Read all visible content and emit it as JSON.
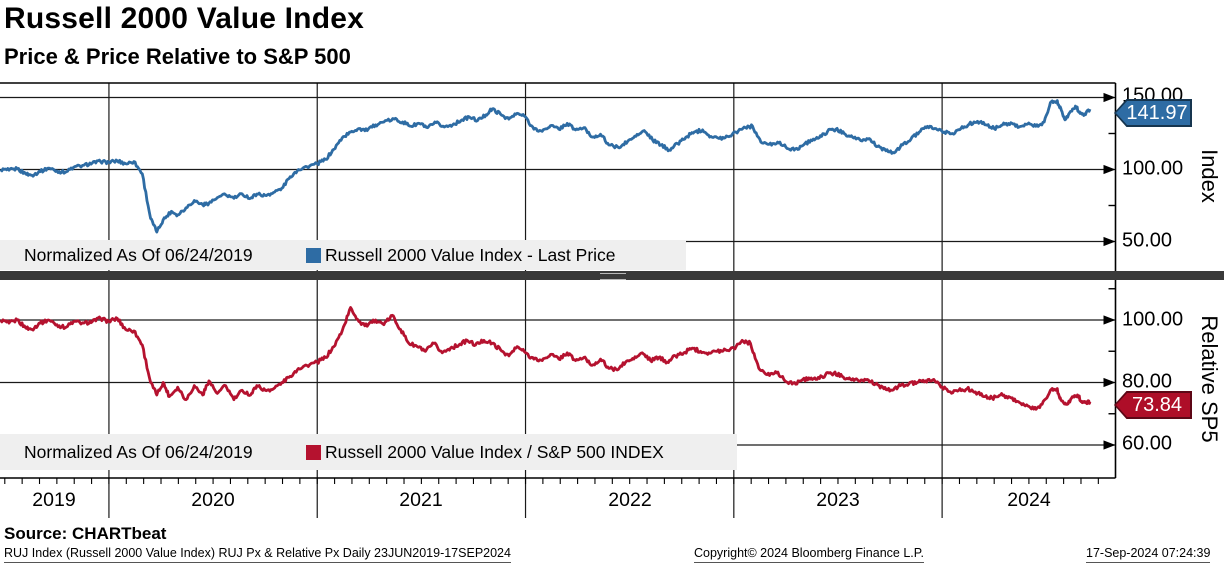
{
  "header": {
    "title": "Russell 2000 Value Index",
    "subtitle": "Price & Price Relative to S&P 500"
  },
  "colors": {
    "price_line": "#2e6ca4",
    "price_badge": "#2e6ca4",
    "badge_border": "#16354f",
    "relative_line": "#b5122f",
    "relative_badge": "#ae0e28",
    "relative_badge_border": "#5d0716",
    "legend_bg": "#efefef",
    "grid": "#1a1a1a",
    "divider": "#3a3a3a"
  },
  "top_panel": {
    "legend": {
      "note": "Normalized As Of 06/24/2019",
      "series_label": "Russell 2000 Value Index - Last Price"
    },
    "axis_title": "Index",
    "ticks": [
      "150.00",
      "100.00",
      "50.00"
    ],
    "last_value": "141.97"
  },
  "bottom_panel": {
    "legend": {
      "note": "Normalized As Of 06/24/2019",
      "series_label": "Russell 2000 Value Index / S&P 500 INDEX"
    },
    "axis_title": "Relative SP5",
    "ticks": [
      "100.00",
      "80.00",
      "60.00"
    ],
    "last_value": "73.84"
  },
  "x_axis": {
    "years": [
      "2019",
      "2020",
      "2021",
      "2022",
      "2023",
      "2024"
    ]
  },
  "footer": {
    "source": "Source: CHARTbeat",
    "description": "RUJ Index (Russell 2000 Value Index) RUJ Px & Relative Px  Daily 23JUN2019-17SEP2024",
    "copyright": "Copyright© 2024 Bloomberg Finance L.P.",
    "timestamp": "17-Sep-2024 07:24:39"
  },
  "chart_data": [
    {
      "type": "line",
      "panel": "top",
      "title": "Russell 2000 Value Index - Last Price",
      "normalized_as_of": "06/24/2019",
      "color": "#2e6ca4",
      "ylabel": "Index",
      "yticks": [
        50,
        100,
        150
      ],
      "ylim": [
        37,
        160
      ],
      "last": 141.97,
      "x_unit": "decimal_year",
      "points": [
        [
          2019.48,
          100
        ],
        [
          2019.52,
          99.5
        ],
        [
          2019.56,
          100.5
        ],
        [
          2019.6,
          97
        ],
        [
          2019.63,
          96
        ],
        [
          2019.67,
          98.5
        ],
        [
          2019.71,
          101
        ],
        [
          2019.75,
          99
        ],
        [
          2019.79,
          98
        ],
        [
          2019.83,
          101.5
        ],
        [
          2019.88,
          103
        ],
        [
          2019.92,
          104.5
        ],
        [
          2019.96,
          105.5
        ],
        [
          2020.0,
          105
        ],
        [
          2020.04,
          106
        ],
        [
          2020.08,
          104
        ],
        [
          2020.12,
          105.5
        ],
        [
          2020.16,
          97
        ],
        [
          2020.2,
          66
        ],
        [
          2020.23,
          56.5
        ],
        [
          2020.26,
          65
        ],
        [
          2020.3,
          71
        ],
        [
          2020.33,
          68.5
        ],
        [
          2020.37,
          73.5
        ],
        [
          2020.41,
          78.5
        ],
        [
          2020.45,
          75.5
        ],
        [
          2020.48,
          76.5
        ],
        [
          2020.52,
          80.5
        ],
        [
          2020.56,
          82.5
        ],
        [
          2020.6,
          80
        ],
        [
          2020.64,
          83
        ],
        [
          2020.68,
          80
        ],
        [
          2020.71,
          83
        ],
        [
          2020.75,
          82
        ],
        [
          2020.79,
          84
        ],
        [
          2020.83,
          87
        ],
        [
          2020.87,
          95
        ],
        [
          2020.91,
          100
        ],
        [
          2020.95,
          102
        ],
        [
          2021.0,
          104
        ],
        [
          2021.04,
          107
        ],
        [
          2021.08,
          114
        ],
        [
          2021.12,
          122
        ],
        [
          2021.16,
          126
        ],
        [
          2021.2,
          128.5
        ],
        [
          2021.24,
          127
        ],
        [
          2021.28,
          131
        ],
        [
          2021.32,
          133
        ],
        [
          2021.37,
          135
        ],
        [
          2021.41,
          133
        ],
        [
          2021.45,
          130
        ],
        [
          2021.49,
          132
        ],
        [
          2021.53,
          129
        ],
        [
          2021.57,
          132.5
        ],
        [
          2021.61,
          129.5
        ],
        [
          2021.65,
          131
        ],
        [
          2021.69,
          134
        ],
        [
          2021.73,
          136.5
        ],
        [
          2021.77,
          134
        ],
        [
          2021.81,
          138
        ],
        [
          2021.84,
          142
        ],
        [
          2021.88,
          138.5
        ],
        [
          2021.92,
          135
        ],
        [
          2021.96,
          139
        ],
        [
          2022.0,
          136.5
        ],
        [
          2022.04,
          128
        ],
        [
          2022.08,
          126.5
        ],
        [
          2022.12,
          130.5
        ],
        [
          2022.16,
          128
        ],
        [
          2022.2,
          132
        ],
        [
          2022.24,
          127.5
        ],
        [
          2022.28,
          129
        ],
        [
          2022.32,
          122.5
        ],
        [
          2022.36,
          124.5
        ],
        [
          2022.4,
          117
        ],
        [
          2022.45,
          115
        ],
        [
          2022.49,
          119.5
        ],
        [
          2022.53,
          123
        ],
        [
          2022.57,
          127
        ],
        [
          2022.61,
          120.5
        ],
        [
          2022.65,
          117
        ],
        [
          2022.69,
          113.5
        ],
        [
          2022.73,
          118
        ],
        [
          2022.77,
          122.5
        ],
        [
          2022.81,
          126
        ],
        [
          2022.85,
          127.5
        ],
        [
          2022.89,
          123
        ],
        [
          2022.93,
          121.5
        ],
        [
          2022.97,
          123
        ],
        [
          2023.01,
          126
        ],
        [
          2023.05,
          129.5
        ],
        [
          2023.09,
          130
        ],
        [
          2023.13,
          119
        ],
        [
          2023.17,
          117.5
        ],
        [
          2023.21,
          119
        ],
        [
          2023.25,
          115.5
        ],
        [
          2023.29,
          113.5
        ],
        [
          2023.33,
          116.5
        ],
        [
          2023.37,
          120.5
        ],
        [
          2023.41,
          122
        ],
        [
          2023.45,
          126.5
        ],
        [
          2023.49,
          128
        ],
        [
          2023.53,
          125
        ],
        [
          2023.57,
          122.5
        ],
        [
          2023.61,
          120
        ],
        [
          2023.65,
          121.5
        ],
        [
          2023.69,
          116
        ],
        [
          2023.73,
          113
        ],
        [
          2023.77,
          111.5
        ],
        [
          2023.81,
          117
        ],
        [
          2023.85,
          121
        ],
        [
          2023.89,
          126
        ],
        [
          2023.93,
          130
        ],
        [
          2023.97,
          128.5
        ],
        [
          2024.01,
          126
        ],
        [
          2024.05,
          125
        ],
        [
          2024.09,
          128.5
        ],
        [
          2024.13,
          131.5
        ],
        [
          2024.17,
          133.5
        ],
        [
          2024.21,
          131
        ],
        [
          2024.25,
          128.5
        ],
        [
          2024.29,
          131
        ],
        [
          2024.33,
          132.5
        ],
        [
          2024.37,
          129.5
        ],
        [
          2024.41,
          131.5
        ],
        [
          2024.45,
          130
        ],
        [
          2024.49,
          133
        ],
        [
          2024.52,
          146.5
        ],
        [
          2024.55,
          147.5
        ],
        [
          2024.57,
          142.5
        ],
        [
          2024.59,
          134.5
        ],
        [
          2024.62,
          140.5
        ],
        [
          2024.64,
          144
        ],
        [
          2024.66,
          140
        ],
        [
          2024.68,
          137.5
        ],
        [
          2024.71,
          141.97
        ]
      ]
    },
    {
      "type": "line",
      "panel": "bottom",
      "title": "Russell 2000 Value Index / S&P 500 INDEX",
      "normalized_as_of": "06/24/2019",
      "color": "#b5122f",
      "ylabel": "Relative SP5",
      "yticks": [
        60,
        80,
        100
      ],
      "ylim": [
        49,
        112
      ],
      "last": 73.84,
      "x_unit": "decimal_year",
      "points": [
        [
          2019.48,
          100
        ],
        [
          2019.52,
          99
        ],
        [
          2019.56,
          100
        ],
        [
          2019.6,
          97.5
        ],
        [
          2019.63,
          97
        ],
        [
          2019.67,
          99
        ],
        [
          2019.71,
          100
        ],
        [
          2019.75,
          98.5
        ],
        [
          2019.79,
          97.5
        ],
        [
          2019.83,
          99.5
        ],
        [
          2019.88,
          99
        ],
        [
          2019.92,
          99.5
        ],
        [
          2019.96,
          100.5
        ],
        [
          2020.0,
          99.5
        ],
        [
          2020.04,
          100.5
        ],
        [
          2020.08,
          97
        ],
        [
          2020.12,
          96.5
        ],
        [
          2020.16,
          92
        ],
        [
          2020.2,
          80
        ],
        [
          2020.23,
          76
        ],
        [
          2020.26,
          80
        ],
        [
          2020.29,
          75.5
        ],
        [
          2020.33,
          78.5
        ],
        [
          2020.37,
          74.5
        ],
        [
          2020.41,
          79
        ],
        [
          2020.45,
          76
        ],
        [
          2020.48,
          80.5
        ],
        [
          2020.52,
          76.5
        ],
        [
          2020.56,
          79
        ],
        [
          2020.6,
          74.5
        ],
        [
          2020.64,
          77.5
        ],
        [
          2020.68,
          76
        ],
        [
          2020.71,
          79
        ],
        [
          2020.75,
          77.5
        ],
        [
          2020.79,
          78
        ],
        [
          2020.83,
          80
        ],
        [
          2020.87,
          82
        ],
        [
          2020.91,
          84.5
        ],
        [
          2020.95,
          85.5
        ],
        [
          2021.0,
          86.5
        ],
        [
          2021.04,
          88
        ],
        [
          2021.08,
          91.5
        ],
        [
          2021.12,
          96.5
        ],
        [
          2021.16,
          104
        ],
        [
          2021.2,
          99.5
        ],
        [
          2021.24,
          98
        ],
        [
          2021.28,
          100
        ],
        [
          2021.32,
          98.5
        ],
        [
          2021.36,
          101.5
        ],
        [
          2021.4,
          97
        ],
        [
          2021.44,
          92.5
        ],
        [
          2021.48,
          91.5
        ],
        [
          2021.52,
          90
        ],
        [
          2021.56,
          92.5
        ],
        [
          2021.6,
          89.5
        ],
        [
          2021.64,
          91
        ],
        [
          2021.68,
          92
        ],
        [
          2021.72,
          93.5
        ],
        [
          2021.76,
          92
        ],
        [
          2021.8,
          93.5
        ],
        [
          2021.84,
          92.5
        ],
        [
          2021.88,
          90.5
        ],
        [
          2021.92,
          88.5
        ],
        [
          2021.96,
          91.5
        ],
        [
          2022.0,
          89.5
        ],
        [
          2022.04,
          87.5
        ],
        [
          2022.08,
          87
        ],
        [
          2022.12,
          89
        ],
        [
          2022.16,
          87.5
        ],
        [
          2022.2,
          89.5
        ],
        [
          2022.24,
          87
        ],
        [
          2022.28,
          88
        ],
        [
          2022.32,
          85.5
        ],
        [
          2022.36,
          87.5
        ],
        [
          2022.4,
          84.5
        ],
        [
          2022.44,
          84
        ],
        [
          2022.48,
          86.5
        ],
        [
          2022.52,
          87.5
        ],
        [
          2022.56,
          89.5
        ],
        [
          2022.6,
          87
        ],
        [
          2022.64,
          88
        ],
        [
          2022.68,
          86.5
        ],
        [
          2022.72,
          88.5
        ],
        [
          2022.76,
          89.5
        ],
        [
          2022.8,
          91
        ],
        [
          2022.84,
          90
        ],
        [
          2022.88,
          89.5
        ],
        [
          2022.92,
          90
        ],
        [
          2022.96,
          90.5
        ],
        [
          2023.0,
          91
        ],
        [
          2023.04,
          93.5
        ],
        [
          2023.08,
          92.5
        ],
        [
          2023.12,
          84.5
        ],
        [
          2023.16,
          82.5
        ],
        [
          2023.2,
          83.5
        ],
        [
          2023.24,
          81
        ],
        [
          2023.28,
          79.5
        ],
        [
          2023.32,
          80.5
        ],
        [
          2023.36,
          81.5
        ],
        [
          2023.4,
          81
        ],
        [
          2023.44,
          82.5
        ],
        [
          2023.48,
          83
        ],
        [
          2023.52,
          82
        ],
        [
          2023.56,
          81
        ],
        [
          2023.6,
          80.5
        ],
        [
          2023.64,
          81
        ],
        [
          2023.68,
          79.5
        ],
        [
          2023.72,
          78
        ],
        [
          2023.76,
          77.5
        ],
        [
          2023.8,
          79
        ],
        [
          2023.84,
          79.5
        ],
        [
          2023.88,
          80
        ],
        [
          2023.92,
          80.5
        ],
        [
          2023.96,
          81
        ],
        [
          2024.0,
          78.5
        ],
        [
          2024.04,
          77
        ],
        [
          2024.08,
          77.5
        ],
        [
          2024.12,
          78
        ],
        [
          2024.16,
          77
        ],
        [
          2024.2,
          75.5
        ],
        [
          2024.24,
          75
        ],
        [
          2024.28,
          76
        ],
        [
          2024.32,
          75.5
        ],
        [
          2024.36,
          74
        ],
        [
          2024.4,
          72.5
        ],
        [
          2024.44,
          71.5
        ],
        [
          2024.48,
          73
        ],
        [
          2024.52,
          77.5
        ],
        [
          2024.55,
          78
        ],
        [
          2024.57,
          74.5
        ],
        [
          2024.6,
          73
        ],
        [
          2024.63,
          75.5
        ],
        [
          2024.65,
          76
        ],
        [
          2024.67,
          74
        ],
        [
          2024.69,
          73.5
        ],
        [
          2024.71,
          73.84
        ]
      ]
    }
  ]
}
